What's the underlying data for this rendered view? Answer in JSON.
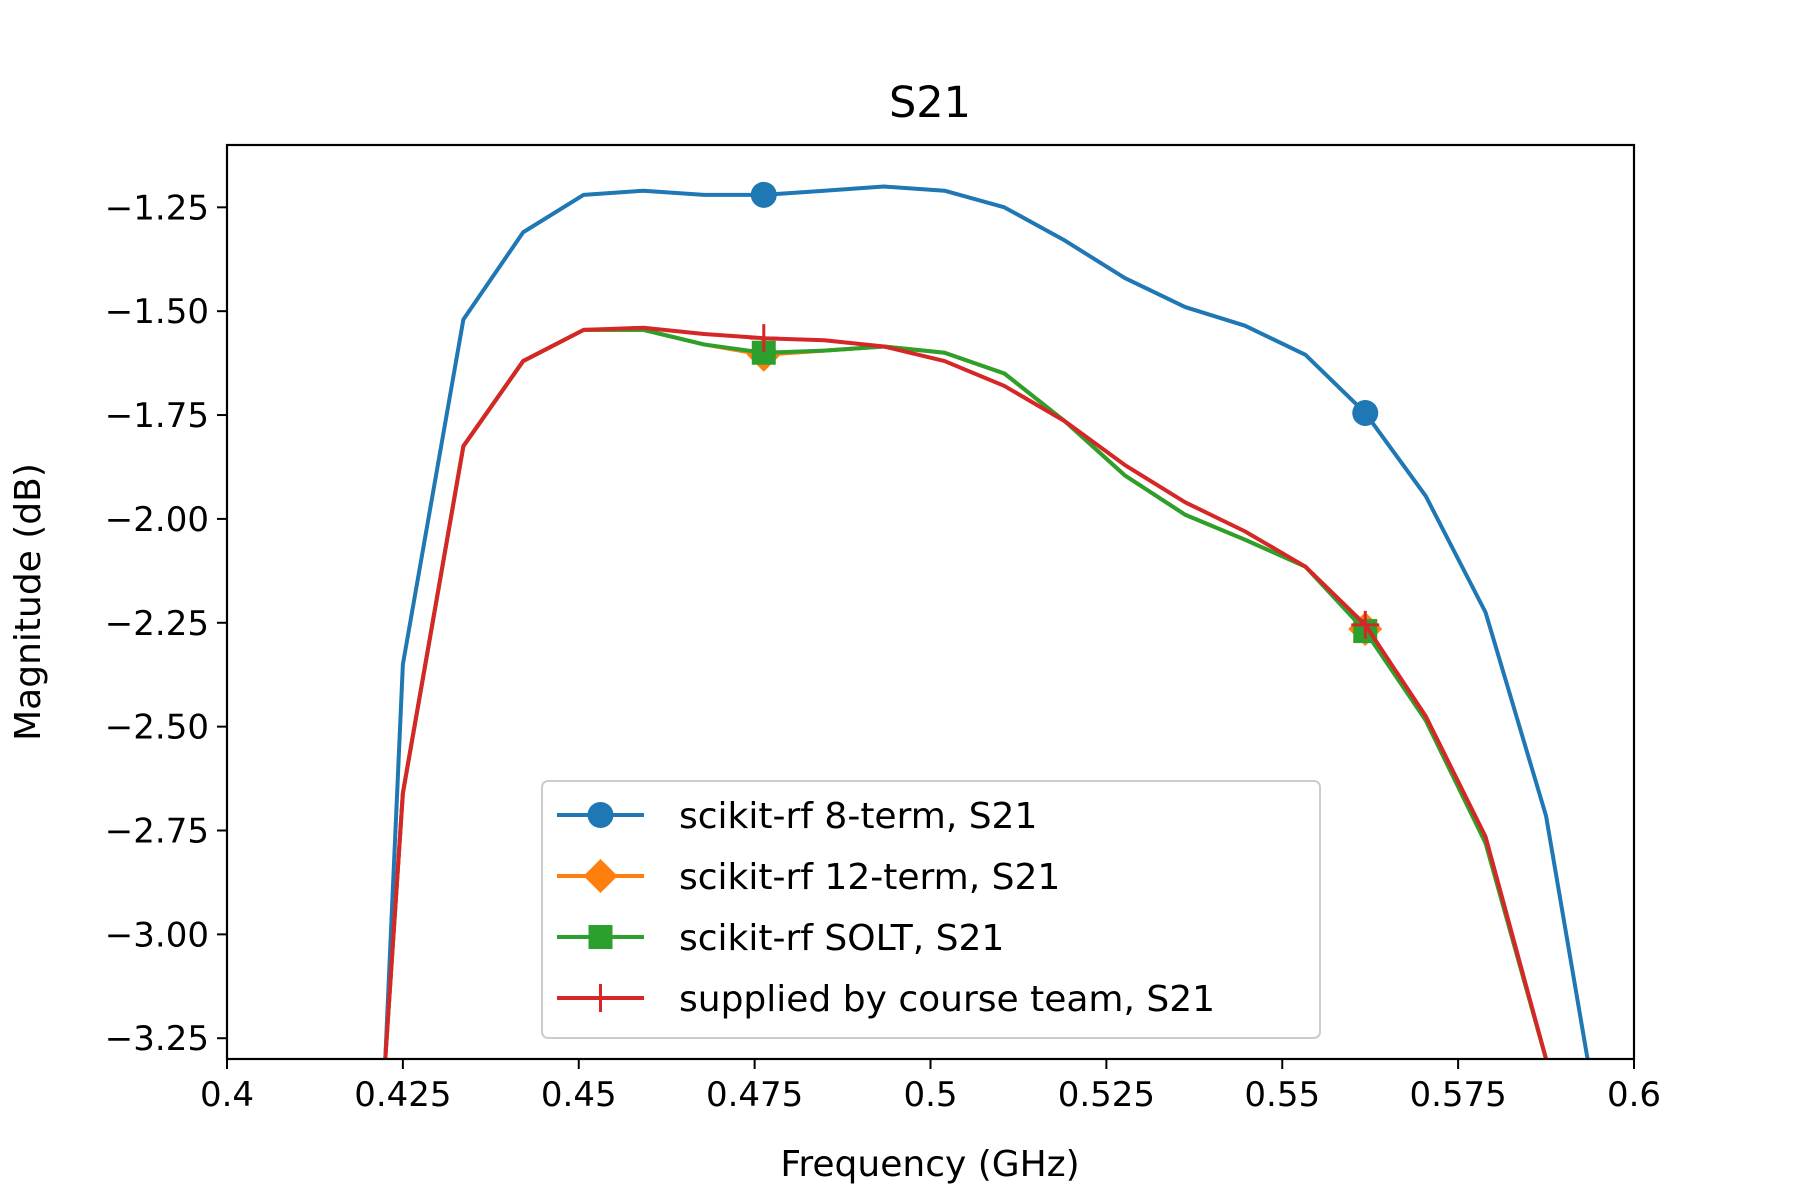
{
  "chart_data": {
    "type": "line",
    "title": "S21",
    "xlabel": "Frequency (GHz)",
    "ylabel": "Magnitude (dB)",
    "xlim": [
      0.4,
      0.6
    ],
    "ylim": [
      -3.3,
      -1.1
    ],
    "xticks": [
      0.4,
      0.425,
      0.45,
      0.475,
      0.5,
      0.525,
      0.55,
      0.575,
      0.6
    ],
    "xtick_labels": [
      "0.4",
      "0.425",
      "0.45",
      "0.475",
      "0.5",
      "0.525",
      "0.55",
      "0.575",
      "0.6"
    ],
    "yticks": [
      -1.25,
      -1.5,
      -1.75,
      -2.0,
      -2.25,
      -2.5,
      -2.75,
      -3.0,
      -3.25
    ],
    "ytick_labels": [
      "−1.25",
      "−1.50",
      "−1.75",
      "−2.00",
      "−2.25",
      "−2.50",
      "−2.75",
      "−3.00",
      "−3.25"
    ],
    "grid": false,
    "legend_position": "lower-center",
    "x": [
      0.4225,
      0.425,
      0.4336,
      0.4421,
      0.4507,
      0.4592,
      0.4678,
      0.4763,
      0.4849,
      0.4934,
      0.502,
      0.5105,
      0.5191,
      0.5276,
      0.5362,
      0.5447,
      0.5533,
      0.5618,
      0.5704,
      0.5789,
      0.5875,
      0.5934
    ],
    "series": [
      {
        "name": "scikit-rf 8-term, S21",
        "color": "#1f77b4",
        "marker": "circle",
        "marker_x": [
          0.4763,
          0.5618
        ],
        "values": [
          -3.3,
          -2.35,
          -1.52,
          -1.31,
          -1.22,
          -1.21,
          -1.22,
          -1.22,
          -1.21,
          -1.2,
          -1.21,
          -1.25,
          -1.33,
          -1.42,
          -1.49,
          -1.535,
          -1.605,
          -1.745,
          -1.945,
          -2.225,
          -2.715,
          -3.3
        ]
      },
      {
        "name": "scikit-rf 12-term, S21",
        "color": "#ff7f0e",
        "marker": "diamond",
        "marker_x": [
          0.4763,
          0.5618
        ],
        "values": [
          -3.3,
          -2.66,
          -1.825,
          -1.62,
          -1.545,
          -1.545,
          -1.58,
          -1.605,
          -1.595,
          -1.585,
          -1.6,
          -1.65,
          -1.765,
          -1.895,
          -1.99,
          -2.05,
          -2.115,
          -2.265,
          -2.485,
          -2.78,
          -3.3,
          null
        ]
      },
      {
        "name": "scikit-rf SOLT, S21",
        "color": "#2ca02c",
        "marker": "square",
        "marker_x": [
          0.4763,
          0.5618
        ],
        "values": [
          -3.3,
          -2.66,
          -1.825,
          -1.62,
          -1.545,
          -1.545,
          -1.58,
          -1.6,
          -1.595,
          -1.585,
          -1.6,
          -1.65,
          -1.765,
          -1.895,
          -1.99,
          -2.05,
          -2.115,
          -2.27,
          -2.485,
          -2.78,
          -3.3,
          null
        ]
      },
      {
        "name": "supplied by course team, S21",
        "color": "#d62728",
        "marker": "plus",
        "marker_x": [
          0.4763,
          0.5618
        ],
        "values": [
          -3.3,
          -2.66,
          -1.825,
          -1.62,
          -1.545,
          -1.54,
          -1.555,
          -1.565,
          -1.57,
          -1.585,
          -1.62,
          -1.68,
          -1.765,
          -1.87,
          -1.96,
          -2.03,
          -2.115,
          -2.255,
          -2.475,
          -2.765,
          -3.3,
          null
        ]
      }
    ]
  }
}
